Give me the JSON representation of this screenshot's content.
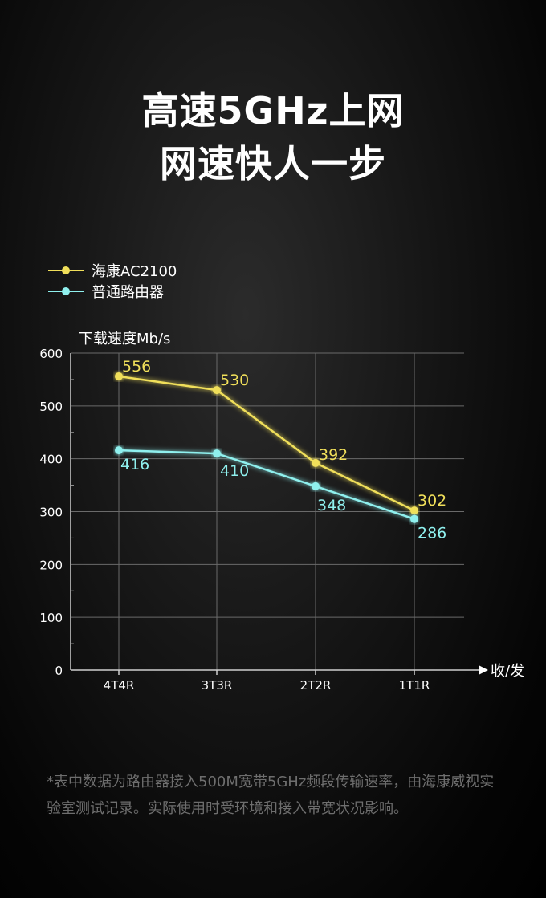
{
  "headline": {
    "line1": "高速5GHz上网",
    "line2": "网速快人一步"
  },
  "legend": [
    {
      "label": "海康AC2100",
      "color": "#f0df5a"
    },
    {
      "label": "普通路由器",
      "color": "#8ff0ee"
    }
  ],
  "chart_data": {
    "type": "line",
    "ylabel": "下载速度Mb/s",
    "xlabel": "收/发",
    "categories": [
      "4T4R",
      "3T3R",
      "2T2R",
      "1T1R"
    ],
    "ylim": [
      0,
      600
    ],
    "yticks": [
      0,
      100,
      200,
      300,
      400,
      500,
      600
    ],
    "grid": true,
    "legend_position": "top-left",
    "series": [
      {
        "name": "海康AC2100",
        "color": "#f0df5a",
        "values": [
          556,
          530,
          392,
          302
        ]
      },
      {
        "name": "普通路由器",
        "color": "#8ff0ee",
        "values": [
          416,
          410,
          348,
          286
        ]
      }
    ]
  },
  "footnote": "*表中数据为路由器接入500M宽带5GHz频段传输速率，由海康威视实验室测试记录。实际使用时受环境和接入带宽状况影响。"
}
